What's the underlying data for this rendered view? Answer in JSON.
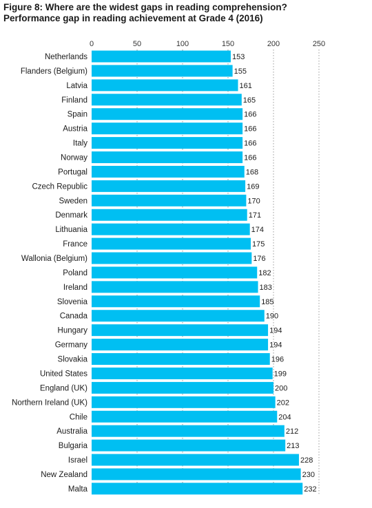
{
  "title": "Figure 8: Where are the widest gaps in reading comprehension?",
  "subtitle": "Performance gap in reading achievement at Grade 4 (2016)",
  "colors": {
    "bar": "#00BFF2",
    "grid": "#9a9a9a"
  },
  "chart_data": {
    "type": "bar",
    "orientation": "horizontal",
    "title": "Figure 8: Where are the widest gaps in reading comprehension?",
    "subtitle": "Performance gap in reading achievement at Grade 4 (2016)",
    "xlim": [
      0,
      250
    ],
    "xticks": [
      0,
      50,
      100,
      150,
      200,
      250
    ],
    "grid": "vertical dotted",
    "categories": [
      "Netherlands",
      "Flanders (Belgium)",
      "Latvia",
      "Finland",
      "Spain",
      "Austria",
      "Italy",
      "Norway",
      "Portugal",
      "Czech Republic",
      "Sweden",
      "Denmark",
      "Lithuania",
      "France",
      "Wallonia (Belgium)",
      "Poland",
      "Ireland",
      "Slovenia",
      "Canada",
      "Hungary",
      "Germany",
      "Slovakia",
      "United States",
      "England (UK)",
      "Northern Ireland (UK)",
      "Chile",
      "Australia",
      "Bulgaria",
      "Israel",
      "New Zealand",
      "Malta"
    ],
    "values": [
      153,
      155,
      161,
      165,
      166,
      166,
      166,
      166,
      168,
      169,
      170,
      171,
      174,
      175,
      176,
      182,
      183,
      185,
      190,
      194,
      194,
      196,
      199,
      200,
      202,
      204,
      212,
      213,
      228,
      230,
      232
    ]
  }
}
